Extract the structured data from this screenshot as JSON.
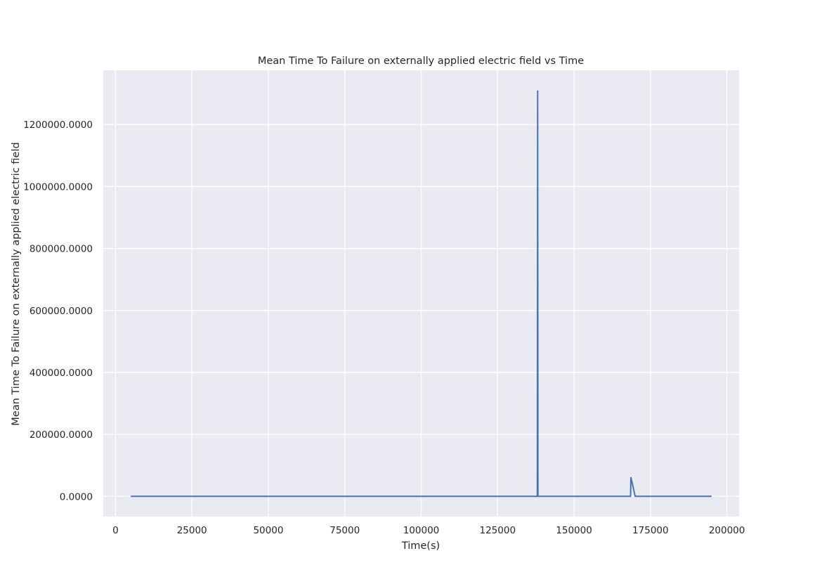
{
  "chart_data": {
    "type": "line",
    "title": "Mean Time To Failure on externally applied electric field vs Time",
    "xlabel": "Time(s)",
    "ylabel": "Mean Time To Failure on externally applied electric field",
    "xlim": [
      -4000,
      204000
    ],
    "ylim": [
      -65000,
      1375000
    ],
    "x_ticks": [
      0,
      25000,
      50000,
      75000,
      100000,
      125000,
      150000,
      175000,
      200000
    ],
    "x_tick_labels": [
      "0",
      "25000",
      "50000",
      "75000",
      "100000",
      "125000",
      "150000",
      "175000",
      "200000"
    ],
    "y_ticks": [
      0,
      200000,
      400000,
      600000,
      800000,
      1000000,
      1200000
    ],
    "y_tick_labels": [
      "0.0000",
      "200000.0000",
      "400000.0000",
      "600000.0000",
      "800000.0000",
      "1000000.0000",
      "1200000.0000"
    ],
    "grid": true,
    "background_color": "#eaeaf2",
    "grid_color": "#ffffff",
    "series": [
      {
        "color": "#4c72b0",
        "x": [
          5000,
          138000,
          138100,
          138200,
          168500,
          168600,
          170000,
          195000
        ],
        "y": [
          0,
          0,
          1310000,
          0,
          0,
          62000,
          0,
          0
        ]
      }
    ]
  }
}
